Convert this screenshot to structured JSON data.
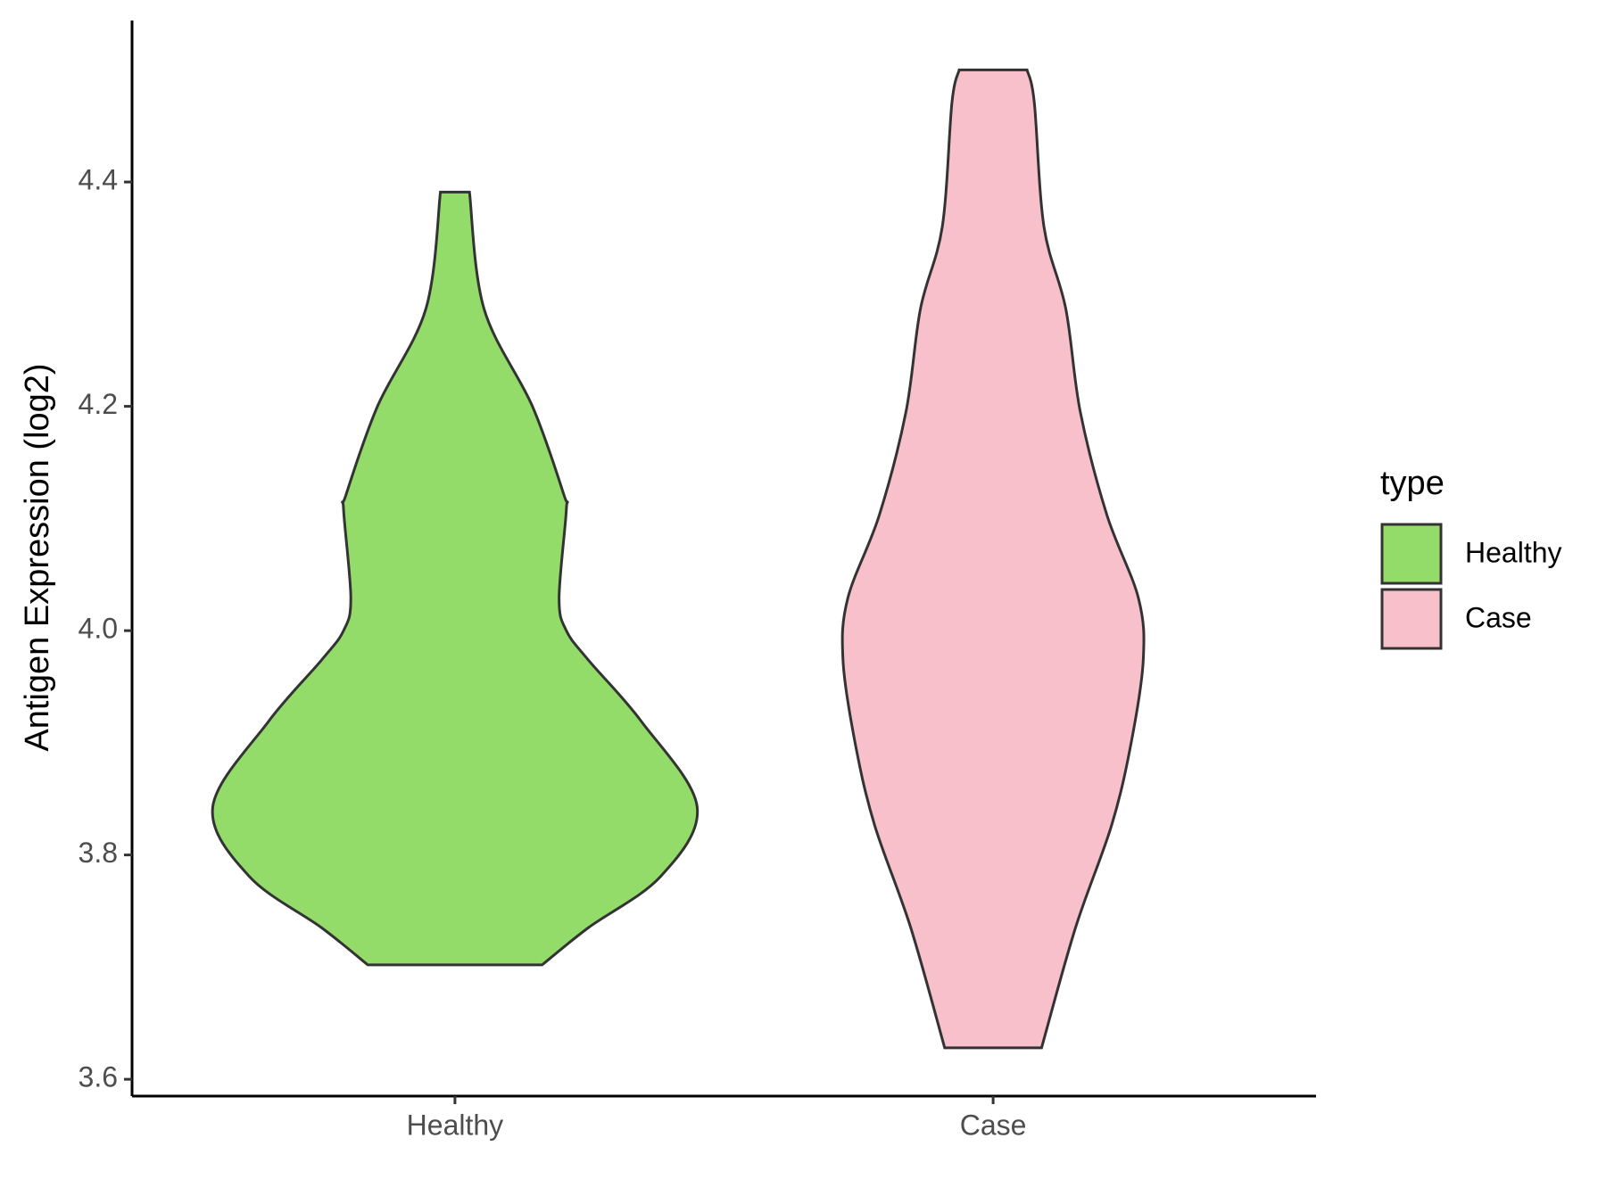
{
  "chart_data": {
    "type": "violin",
    "y_label": "Antigen Expression (log2)",
    "legend_title": "type",
    "categories": [
      "Healthy",
      "Case"
    ],
    "series": [
      {
        "name": "Healthy",
        "color": "#93dc6a",
        "values": [
          4.391,
          4.287,
          4.2,
          4.121,
          4.108,
          4.029,
          4.0,
          3.974,
          3.919,
          3.843,
          3.781,
          3.735,
          3.702
        ],
        "density": [
          0.06,
          0.12,
          0.32,
          0.45,
          0.46,
          0.43,
          0.46,
          0.55,
          0.77,
          1.0,
          0.85,
          0.55,
          0.36
        ]
      },
      {
        "name": "Case",
        "color": "#f7c0cb",
        "values": [
          4.5,
          4.471,
          4.36,
          4.287,
          4.195,
          4.103,
          4.029,
          3.974,
          3.9,
          3.827,
          3.735,
          3.628
        ],
        "density": [
          0.14,
          0.17,
          0.21,
          0.3,
          0.36,
          0.47,
          0.6,
          0.62,
          0.57,
          0.49,
          0.34,
          0.2
        ]
      }
    ],
    "ylim": [
      3.585,
      4.544
    ],
    "yticks": [
      {
        "value": 3.6,
        "label": "3.6"
      },
      {
        "value": 3.8,
        "label": "3.8"
      },
      {
        "value": 4.0,
        "label": "4.0"
      },
      {
        "value": 4.2,
        "label": "4.2"
      },
      {
        "value": 4.4,
        "label": "4.4"
      }
    ],
    "legend_position": "right"
  }
}
